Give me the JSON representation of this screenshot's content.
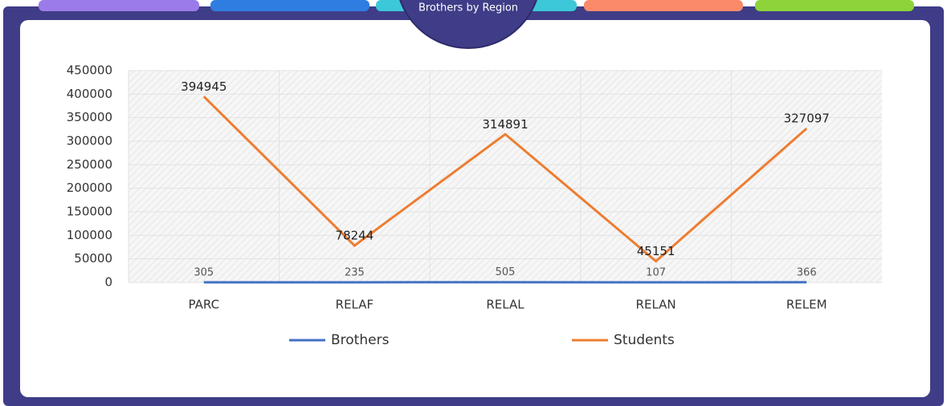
{
  "chart_data": {
    "type": "line",
    "title": "Brothers by Region",
    "categories": [
      "PARC",
      "RELAF",
      "RELAL",
      "RELAN",
      "RELEM"
    ],
    "series": [
      {
        "name": "Brothers",
        "color": "#4472c4",
        "values": [
          305,
          235,
          505,
          107,
          366
        ]
      },
      {
        "name": "Students",
        "color": "#ed7d31",
        "values": [
          394945,
          78244,
          314891,
          45151,
          327097
        ]
      }
    ],
    "ylim": [
      0,
      450000
    ],
    "yticks": [
      0,
      50000,
      100000,
      150000,
      200000,
      250000,
      300000,
      350000,
      400000,
      450000
    ],
    "grid": true,
    "legend": "bottom"
  }
}
